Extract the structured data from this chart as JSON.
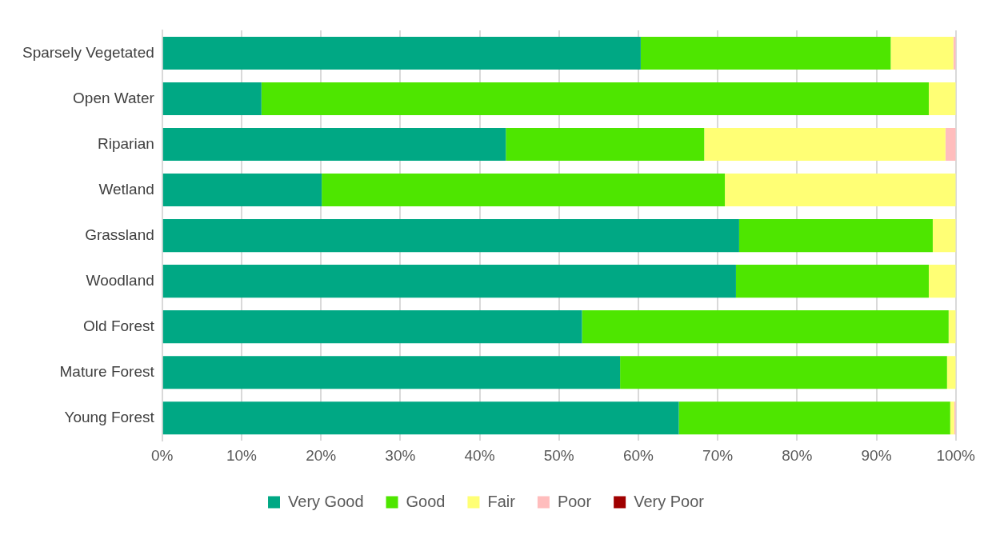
{
  "chart_data": {
    "type": "bar",
    "orientation": "horizontal",
    "stacked": true,
    "categories": [
      "Sparsely Vegetated",
      "Open Water",
      "Riparian",
      "Wetland",
      "Grassland",
      "Woodland",
      "Old Forest",
      "Mature Forest",
      "Young Forest"
    ],
    "series": [
      {
        "name": "Very Good",
        "color": "#00a884",
        "values": [
          60.3,
          12.5,
          43.3,
          20.1,
          72.7,
          72.3,
          52.9,
          57.7,
          65.1
        ]
      },
      {
        "name": "Good",
        "color": "#4ee600",
        "values": [
          31.5,
          84.1,
          25,
          50.8,
          24.4,
          24.3,
          46.2,
          41.2,
          34.2
        ]
      },
      {
        "name": "Fair",
        "color": "#ffff75",
        "values": [
          7.9,
          3.4,
          30.4,
          29.1,
          2.9,
          3.4,
          0.9,
          1.1,
          0.5
        ]
      },
      {
        "name": "Poor",
        "color": "#ffbdbd",
        "values": [
          0.3,
          0,
          1.3,
          0,
          0,
          0,
          0,
          0,
          0.2
        ]
      },
      {
        "name": "Very Poor",
        "color": "#a00000",
        "values": [
          0,
          0,
          0,
          0,
          0,
          0,
          0,
          0,
          0
        ]
      }
    ],
    "xlim": [
      0,
      100
    ],
    "xticks": [
      {
        "value": 0,
        "label": "0%"
      },
      {
        "value": 10,
        "label": "10%"
      },
      {
        "value": 20,
        "label": "20%"
      },
      {
        "value": 30,
        "label": "30%"
      },
      {
        "value": 40,
        "label": "40%"
      },
      {
        "value": 50,
        "label": "50%"
      },
      {
        "value": 60,
        "label": "60%"
      },
      {
        "value": 70,
        "label": "70%"
      },
      {
        "value": 80,
        "label": "80%"
      },
      {
        "value": 90,
        "label": "90%"
      },
      {
        "value": 100,
        "label": "100%"
      }
    ],
    "grid": "x",
    "legend": "bottom"
  }
}
